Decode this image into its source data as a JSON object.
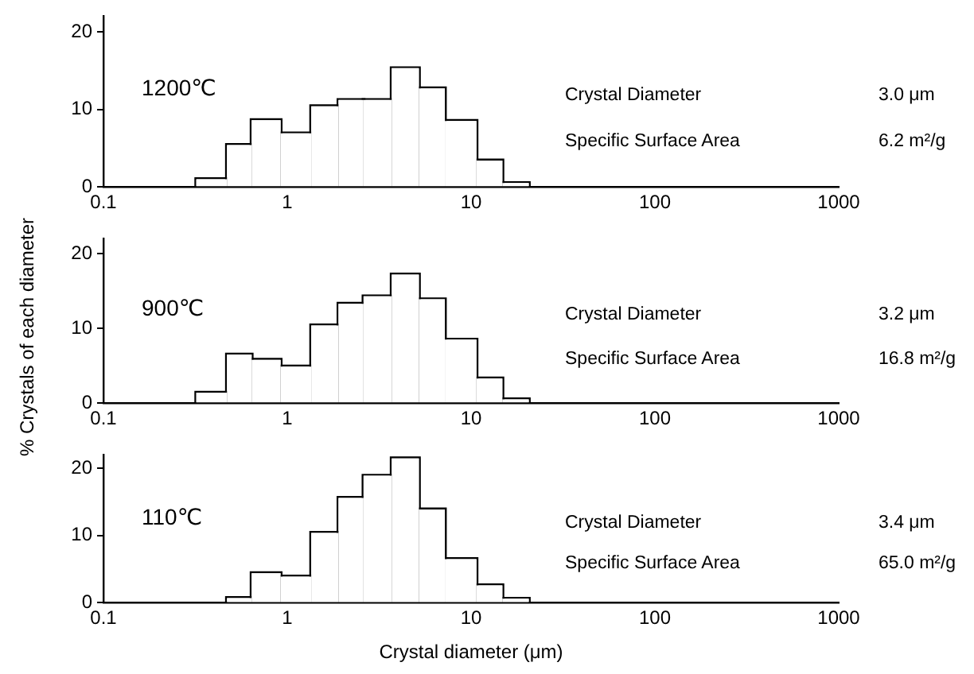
{
  "chart_data": [
    {
      "type": "histogram",
      "bins": [
        0.32,
        0.47,
        0.64,
        0.92,
        1.35,
        1.9,
        2.6,
        3.7,
        5.2,
        7.2,
        10.7,
        14.8,
        20.6
      ],
      "values": [
        1.0,
        5.4,
        8.6,
        6.9,
        10.4,
        11.2,
        11.2,
        15.3,
        12.7,
        8.5,
        3.4,
        0.5
      ],
      "color": "#ffffff",
      "log": "x",
      "xlim": [
        0.1,
        1000
      ],
      "xticks": [
        0.1,
        1,
        10,
        100,
        1000
      ],
      "ylim": [
        0,
        22
      ],
      "yticks": [
        0,
        10,
        20
      ],
      "grid": false,
      "legend": false,
      "annotations": [
        "1200℃",
        "Crystal Diameter",
        "3.0 μm",
        "Specific Surface Area",
        "6.2 m²/g"
      ]
    },
    {
      "type": "histogram",
      "bins": [
        0.32,
        0.47,
        0.64,
        0.92,
        1.35,
        1.9,
        2.6,
        3.7,
        5.2,
        7.2,
        10.7,
        14.8,
        20.6
      ],
      "values": [
        1.4,
        6.5,
        5.8,
        4.9,
        10.4,
        13.3,
        14.3,
        17.2,
        13.9,
        8.5,
        3.3,
        0.5
      ],
      "color": "#ffffff",
      "log": "x",
      "xlim": [
        0.1,
        1000
      ],
      "xticks": [
        0.1,
        1,
        10,
        100,
        1000
      ],
      "ylim": [
        0,
        22
      ],
      "yticks": [
        0,
        10,
        20
      ],
      "grid": false,
      "legend": false,
      "ylabel": "% Crystals of each diameter",
      "annotations": [
        "900℃",
        "Crystal Diameter",
        "3.2 μm",
        "Specific Surface Area",
        "16.8 m²/g"
      ]
    },
    {
      "type": "histogram",
      "bins": [
        0.47,
        0.64,
        0.92,
        1.35,
        1.9,
        2.6,
        3.7,
        5.2,
        7.2,
        10.7,
        14.8,
        20.6
      ],
      "values": [
        0.7,
        4.4,
        3.9,
        10.4,
        15.6,
        18.9,
        21.5,
        13.9,
        6.5,
        2.6,
        0.6
      ],
      "color": "#ffffff",
      "log": "x",
      "xlim": [
        0.1,
        1000
      ],
      "xticks": [
        0.1,
        1,
        10,
        100,
        1000
      ],
      "ylim": [
        0,
        22
      ],
      "yticks": [
        0,
        10,
        20
      ],
      "grid": false,
      "legend": false,
      "xlabel": "Crystal diameter (μm)",
      "annotations": [
        "110℃",
        "Crystal Diameter",
        "3.4 μm",
        "Specific Surface Area",
        "65.0 m²/g"
      ]
    }
  ]
}
